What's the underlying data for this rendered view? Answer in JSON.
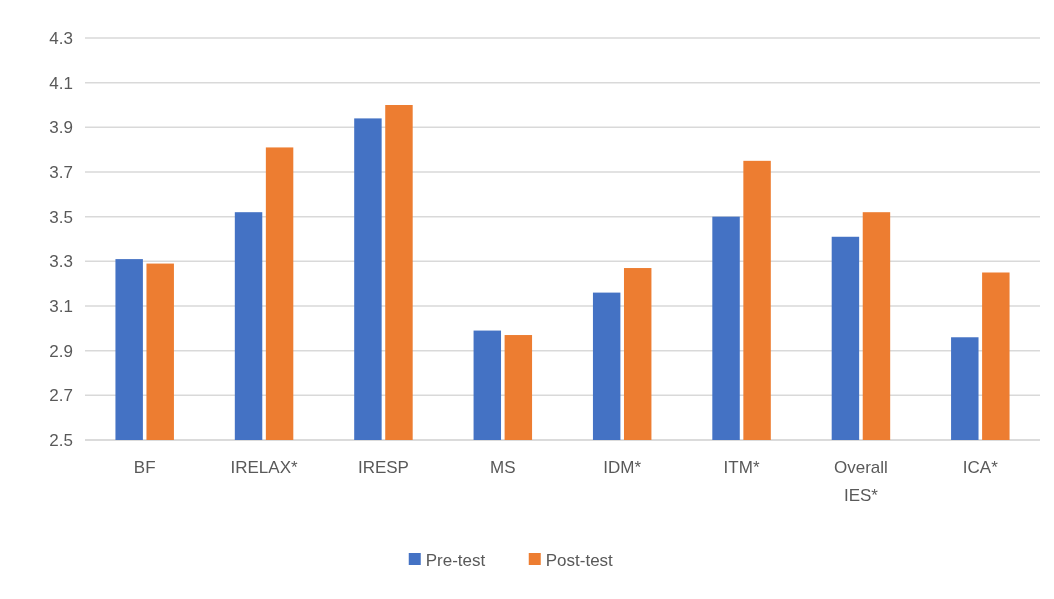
{
  "chart_data": {
    "type": "bar",
    "categories": [
      "BF",
      "IRELAX*",
      "IRESP",
      "MS",
      "IDM*",
      "ITM*",
      "Overall IES*",
      "ICA*"
    ],
    "series": [
      {
        "name": "Pre-test",
        "color": "#4472c4",
        "values": [
          3.31,
          3.52,
          3.94,
          2.99,
          3.16,
          3.5,
          3.41,
          2.96
        ]
      },
      {
        "name": "Post-test",
        "color": "#ed7d31",
        "values": [
          3.29,
          3.81,
          4.0,
          2.97,
          3.27,
          3.75,
          3.52,
          3.25
        ]
      }
    ],
    "ylim": [
      2.5,
      4.3
    ],
    "yticks": [
      2.5,
      2.7,
      2.9,
      3.1,
      3.3,
      3.5,
      3.7,
      3.9,
      4.1,
      4.3
    ],
    "grid": "y",
    "legend": "bottom"
  }
}
